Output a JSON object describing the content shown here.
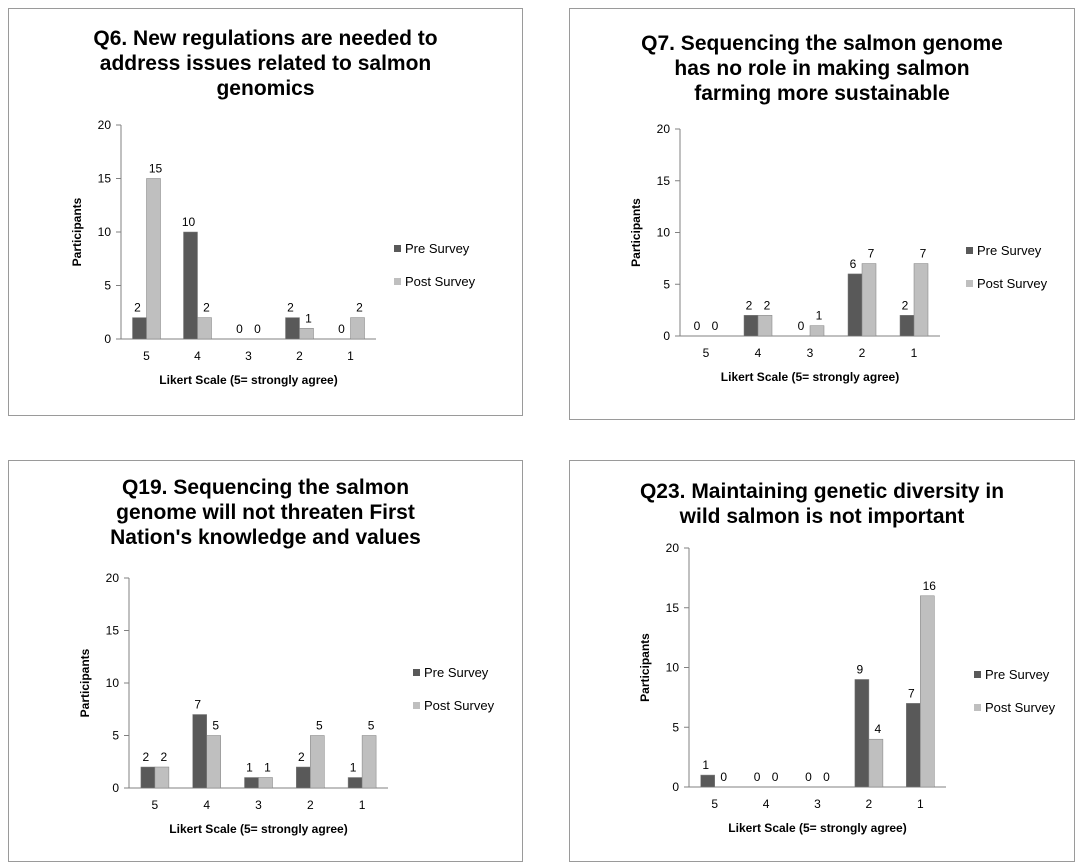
{
  "colors": {
    "pre": "#595959",
    "post": "#bfbfbf",
    "axis": "#808080"
  },
  "legend": {
    "pre": "Pre Survey",
    "post": "Post Survey"
  },
  "chart_data": [
    {
      "type": "bar",
      "title": "Q6.  New regulations are needed to\naddress issues related to salmon\ngenomics",
      "xlabel": "Likert Scale (5= strongly agree)",
      "ylabel": "Participants",
      "ylim": [
        0,
        20
      ],
      "yticks": [
        "0",
        "5",
        "10",
        "15",
        "20"
      ],
      "categories": [
        "5",
        "4",
        "3",
        "2",
        "1"
      ],
      "series": [
        {
          "name": "Pre Survey",
          "values": [
            2,
            10,
            0,
            2,
            0
          ]
        },
        {
          "name": "Post Survey",
          "values": [
            15,
            2,
            0,
            1,
            2
          ]
        }
      ],
      "legend_position": "right"
    },
    {
      "type": "bar",
      "title": "Q7. Sequencing the salmon genome\nhas no role in making salmon\nfarming more sustainable",
      "xlabel": "Likert Scale (5= strongly agree)",
      "ylabel": "Participants",
      "ylim": [
        0,
        20
      ],
      "yticks": [
        "0",
        "5",
        "10",
        "15",
        "20"
      ],
      "categories": [
        "5",
        "4",
        "3",
        "2",
        "1"
      ],
      "series": [
        {
          "name": "Pre Survey",
          "values": [
            0,
            2,
            0,
            6,
            2
          ]
        },
        {
          "name": "Post Survey",
          "values": [
            0,
            2,
            1,
            7,
            7
          ]
        }
      ],
      "legend_position": "right"
    },
    {
      "type": "bar",
      "title": "Q19. Sequencing the salmon\ngenome will not threaten First\nNation's knowledge and values",
      "xlabel": "Likert Scale (5= strongly agree)",
      "ylabel": "Participants",
      "ylim": [
        0,
        20
      ],
      "yticks": [
        "0",
        "5",
        "10",
        "15",
        "20"
      ],
      "categories": [
        "5",
        "4",
        "3",
        "2",
        "1"
      ],
      "series": [
        {
          "name": "Pre Survey",
          "values": [
            2,
            7,
            1,
            2,
            1
          ]
        },
        {
          "name": "Post Survey",
          "values": [
            2,
            5,
            1,
            5,
            5
          ]
        }
      ],
      "legend_position": "right"
    },
    {
      "type": "bar",
      "title": "Q23. Maintaining genetic diversity in\nwild salmon is not important",
      "xlabel": "Likert Scale (5= strongly agree)",
      "ylabel": "Participants",
      "ylim": [
        0,
        20
      ],
      "yticks": [
        "0",
        "5",
        "10",
        "15",
        "20"
      ],
      "categories": [
        "5",
        "4",
        "3",
        "2",
        "1"
      ],
      "series": [
        {
          "name": "Pre Survey",
          "values": [
            1,
            0,
            0,
            9,
            7
          ]
        },
        {
          "name": "Post Survey",
          "values": [
            0,
            0,
            0,
            4,
            16
          ]
        }
      ],
      "legend_position": "right"
    }
  ]
}
